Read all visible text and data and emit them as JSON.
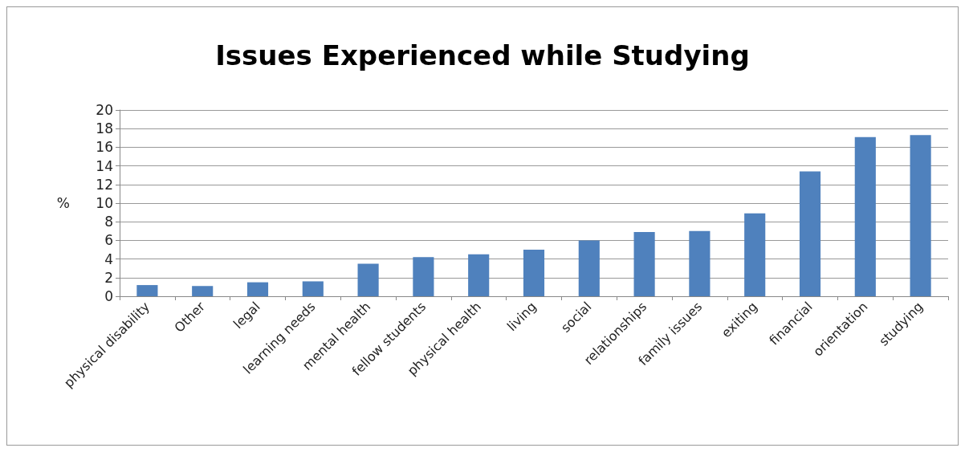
{
  "chart_data": {
    "type": "bar",
    "title": "Issues Experienced while Studying",
    "ylabel": "%",
    "categories": [
      "physical disability",
      "Other",
      "legal",
      "learning needs",
      "mental health",
      "fellow students",
      "physical health",
      "living",
      "social",
      "relationships",
      "family issues",
      "exiting",
      "financial",
      "orientation",
      "studying"
    ],
    "values": [
      1.2,
      1.1,
      1.5,
      1.6,
      3.5,
      4.2,
      4.5,
      5.0,
      6.0,
      6.9,
      7.0,
      8.9,
      13.4,
      17.1,
      17.3
    ],
    "color": "#4f81bd",
    "ylim": [
      0,
      20
    ],
    "yticks": [
      0,
      2,
      4,
      6,
      8,
      10,
      12,
      14,
      16,
      18,
      20
    ],
    "grid": "y"
  }
}
